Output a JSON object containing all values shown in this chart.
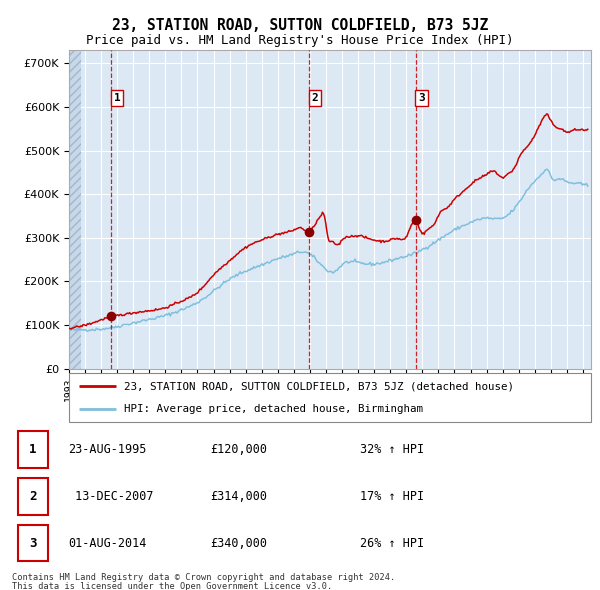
{
  "title": "23, STATION ROAD, SUTTON COLDFIELD, B73 5JZ",
  "subtitle": "Price paid vs. HM Land Registry's House Price Index (HPI)",
  "legend_line1": "23, STATION ROAD, SUTTON COLDFIELD, B73 5JZ (detached house)",
  "legend_line2": "HPI: Average price, detached house, Birmingham",
  "footer1": "Contains HM Land Registry data © Crown copyright and database right 2024.",
  "footer2": "This data is licensed under the Open Government Licence v3.0.",
  "transactions": [
    {
      "num": 1,
      "date": "23-AUG-1995",
      "price": 120000,
      "hpi": "32% ↑ HPI",
      "year": 1995.64
    },
    {
      "num": 2,
      "date": "13-DEC-2007",
      "price": 314000,
      "hpi": "17% ↑ HPI",
      "year": 2007.95
    },
    {
      "num": 3,
      "date": "01-AUG-2014",
      "price": 340000,
      "hpi": "26% ↑ HPI",
      "year": 2014.58
    }
  ],
  "hpi_color": "#7fbfdd",
  "price_color": "#cc0000",
  "marker_color": "#8b0000",
  "vline_color": "#cc0000",
  "background_color": "#dce9f5",
  "grid_color": "#ffffff",
  "title_fontsize": 10.5,
  "subtitle_fontsize": 9,
  "ylim": [
    0,
    730000
  ],
  "xlim_start": 1993.0,
  "xlim_end": 2025.5,
  "hpi_anchors": [
    [
      1993.0,
      88000
    ],
    [
      1994.0,
      89500
    ],
    [
      1995.0,
      91000
    ],
    [
      1996.0,
      97000
    ],
    [
      1997.0,
      105000
    ],
    [
      1998.0,
      113000
    ],
    [
      1999.0,
      122000
    ],
    [
      2000.0,
      135000
    ],
    [
      2001.0,
      152000
    ],
    [
      2002.0,
      178000
    ],
    [
      2003.0,
      205000
    ],
    [
      2004.0,
      224000
    ],
    [
      2005.0,
      238000
    ],
    [
      2006.0,
      252000
    ],
    [
      2007.0,
      263000
    ],
    [
      2007.5,
      268000
    ],
    [
      2008.0,
      262000
    ],
    [
      2009.0,
      228000
    ],
    [
      2009.5,
      222000
    ],
    [
      2010.0,
      238000
    ],
    [
      2011.0,
      243000
    ],
    [
      2012.0,
      240000
    ],
    [
      2013.0,
      248000
    ],
    [
      2014.0,
      258000
    ],
    [
      2014.58,
      265000
    ],
    [
      2015.0,
      273000
    ],
    [
      2016.0,
      295000
    ],
    [
      2017.0,
      318000
    ],
    [
      2018.0,
      335000
    ],
    [
      2019.0,
      345000
    ],
    [
      2020.0,
      345000
    ],
    [
      2020.5,
      358000
    ],
    [
      2021.0,
      380000
    ],
    [
      2021.5,
      408000
    ],
    [
      2022.0,
      430000
    ],
    [
      2022.5,
      450000
    ],
    [
      2022.8,
      456000
    ],
    [
      2023.0,
      440000
    ],
    [
      2023.5,
      435000
    ],
    [
      2024.0,
      428000
    ],
    [
      2024.5,
      425000
    ],
    [
      2025.0,
      422000
    ],
    [
      2025.3,
      420000
    ]
  ],
  "price_anchors": [
    [
      1993.0,
      93000
    ],
    [
      1994.0,
      100000
    ],
    [
      1995.0,
      112000
    ],
    [
      1995.64,
      120000
    ],
    [
      1996.0,
      122000
    ],
    [
      1997.0,
      128000
    ],
    [
      1998.0,
      133000
    ],
    [
      1999.0,
      140000
    ],
    [
      2000.0,
      155000
    ],
    [
      2001.0,
      175000
    ],
    [
      2002.0,
      215000
    ],
    [
      2003.0,
      248000
    ],
    [
      2004.0,
      278000
    ],
    [
      2005.0,
      295000
    ],
    [
      2006.0,
      308000
    ],
    [
      2007.0,
      318000
    ],
    [
      2007.5,
      322000
    ],
    [
      2007.95,
      314000
    ],
    [
      2008.3,
      330000
    ],
    [
      2008.7,
      352000
    ],
    [
      2008.9,
      350000
    ],
    [
      2009.1,
      305000
    ],
    [
      2009.4,
      290000
    ],
    [
      2009.8,
      285000
    ],
    [
      2010.0,
      295000
    ],
    [
      2010.5,
      303000
    ],
    [
      2011.0,
      305000
    ],
    [
      2011.5,
      300000
    ],
    [
      2012.0,
      295000
    ],
    [
      2012.5,
      292000
    ],
    [
      2013.0,
      295000
    ],
    [
      2013.5,
      298000
    ],
    [
      2014.0,
      302000
    ],
    [
      2014.58,
      340000
    ],
    [
      2015.0,
      310000
    ],
    [
      2015.3,
      318000
    ],
    [
      2015.8,
      335000
    ],
    [
      2016.0,
      352000
    ],
    [
      2016.5,
      368000
    ],
    [
      2017.0,
      388000
    ],
    [
      2017.5,
      405000
    ],
    [
      2018.0,
      422000
    ],
    [
      2018.5,
      435000
    ],
    [
      2019.0,
      445000
    ],
    [
      2019.5,
      452000
    ],
    [
      2020.0,
      438000
    ],
    [
      2020.3,
      445000
    ],
    [
      2020.8,
      465000
    ],
    [
      2021.0,
      482000
    ],
    [
      2021.5,
      508000
    ],
    [
      2022.0,
      535000
    ],
    [
      2022.3,
      558000
    ],
    [
      2022.6,
      578000
    ],
    [
      2022.75,
      582000
    ],
    [
      2023.0,
      568000
    ],
    [
      2023.3,
      555000
    ],
    [
      2023.7,
      548000
    ],
    [
      2024.0,
      542000
    ],
    [
      2024.3,
      545000
    ],
    [
      2024.7,
      548000
    ],
    [
      2025.0,
      547000
    ],
    [
      2025.3,
      548000
    ]
  ]
}
